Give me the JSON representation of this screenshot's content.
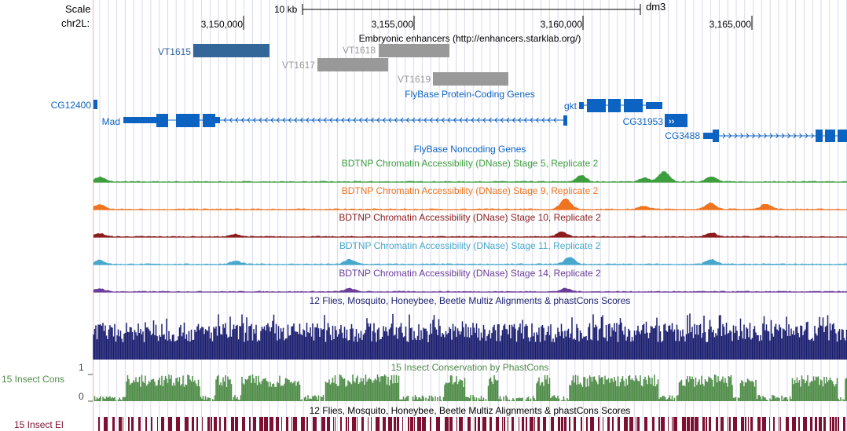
{
  "colors": {
    "enh_dark": "#336699",
    "enh_gray": "#999999",
    "gene": "#0d63c2",
    "dnase5": "#3d9e3d",
    "dnase9": "#ef7420",
    "dnase10": "#8c1c1c",
    "dnase11": "#48a8cc",
    "dnase14": "#6a3d9a",
    "multiz": "#1a1e6e",
    "cons": "#4e8c47",
    "el": "#7d1030"
  },
  "ruler": {
    "scale_label": "Scale",
    "chrom_label": "chr2L:",
    "scale_bar_label": "10 kb",
    "assembly": "dm3",
    "ticks": [
      "3,150,000",
      "3,155,000",
      "3,160,000",
      "3,165,000"
    ]
  },
  "tracks": {
    "enhancers": {
      "title": "Embryonic enhancers (http://enhancers.starklab.org/)",
      "items": [
        {
          "name": "VT1615",
          "shade": "dark"
        },
        {
          "name": "VT1618",
          "shade": "gray"
        },
        {
          "name": "VT1617",
          "shade": "gray"
        },
        {
          "name": "VT1619",
          "shade": "gray"
        }
      ]
    },
    "genes": {
      "title": "FlyBase Protein-Coding Genes",
      "items": [
        "CG12400",
        "Mad",
        "gkt",
        "CG31953",
        "CG3488"
      ]
    },
    "noncoding": {
      "title": "FlyBase Noncoding Genes"
    },
    "dnase": [
      {
        "title": "BDTNP Chromatin Accessibility (DNase) Stage 5, Replicate 2"
      },
      {
        "title": "BDTNP Chromatin Accessibility (DNase) Stage 9, Replicate 2"
      },
      {
        "title": "BDTNP Chromatin Accessibility (DNase) Stage 10, Replicate 2"
      },
      {
        "title": "BDTNP Chromatin Accessibility (DNase) Stage 11, Replicate 2"
      },
      {
        "title": "BDTNP Chromatin Accessibility (DNase) Stage 14, Replicate 2"
      }
    ],
    "multiz": {
      "title": "12 Flies, Mosquito, Honeybee, Beetle Multiz Alignments & phastCons Scores"
    },
    "cons": {
      "title": "15 Insect Conservation by PhastCons",
      "side_label": "15 Insect Cons",
      "axis_max": "1",
      "axis_min": "0"
    },
    "elements": {
      "title": "12 Flies, Mosquito, Honeybee, Beetle Multiz Alignments & phastCons Scores",
      "side_label": "15 Insect El"
    }
  }
}
